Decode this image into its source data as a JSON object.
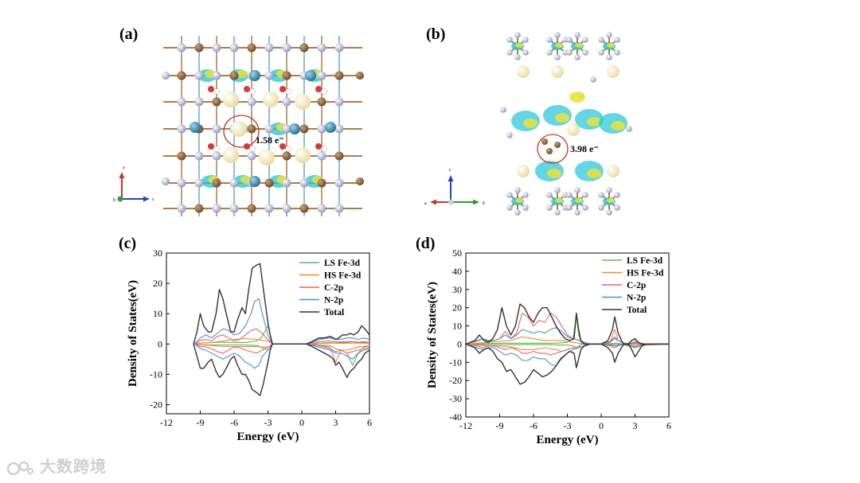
{
  "panels": {
    "a": {
      "label": "(a)",
      "charge_label": "1.58 e⁻",
      "axes": {
        "up": "a",
        "right": "c",
        "center": "b"
      }
    },
    "b": {
      "label": "(b)",
      "charge_label": "3.98 e⁻",
      "axes": {
        "up": "c",
        "left": "a",
        "right": "b"
      }
    },
    "c": {
      "label": "(c)"
    },
    "d": {
      "label": "(d)"
    }
  },
  "watermark": "大数跨境",
  "colors": {
    "LS Fe-3d": "#5cb85c",
    "HS Fe-3d": "#f08a3c",
    "C-2p": "#e8646a",
    "N-2p": "#4a90d9",
    "Total": "#333333"
  },
  "chart_data": [
    {
      "type": "line",
      "panel": "(c)",
      "xlabel": "Energy (eV)",
      "ylabel": "Density of States(eV)",
      "xlim": [
        -12,
        6
      ],
      "ylim": [
        -23,
        30
      ],
      "xticks": [
        -12,
        -9,
        -6,
        -3,
        0,
        3,
        6
      ],
      "yticks": [
        -20,
        -10,
        0,
        10,
        20,
        30
      ],
      "legend_position": "top-right",
      "series": [
        {
          "name": "LS Fe-3d",
          "x": [
            -9.5,
            -9,
            -8,
            -7,
            -6,
            -5,
            -4,
            -3.6,
            -3,
            -2.6,
            0.5,
            1.5,
            2.5,
            3,
            3.5,
            4,
            4.5,
            5,
            5.5,
            6
          ],
          "up": [
            0,
            0.3,
            0.5,
            0.6,
            0.5,
            0.5,
            1,
            2,
            6,
            0,
            0,
            0.2,
            0.3,
            0.3,
            0.5,
            0.5,
            0.8,
            0.4,
            0.5,
            0.4
          ],
          "down": [
            0,
            -0.2,
            -0.3,
            -0.3,
            -0.3,
            -0.3,
            -0.5,
            -1,
            -2,
            0,
            0,
            -0.3,
            -0.5,
            -1.5,
            -2,
            -3,
            -7,
            -3,
            -1,
            -0.5
          ]
        },
        {
          "name": "HS Fe-3d",
          "x": [
            -9.5,
            -9,
            -8,
            -7,
            -6,
            -5,
            -4,
            -3.5,
            -3,
            -2.6,
            0.5,
            1.5,
            2.5,
            3,
            3.5,
            4,
            5,
            6
          ],
          "up": [
            0,
            0.3,
            0.5,
            1,
            1.5,
            1.8,
            1.5,
            1.2,
            1,
            0,
            0,
            0.3,
            0.5,
            0.3,
            0.2,
            0.3,
            0.3,
            0.2
          ],
          "down": [
            0,
            -0.3,
            -0.5,
            -0.8,
            -0.8,
            -0.8,
            -0.8,
            -1,
            -1,
            0,
            0,
            -0.5,
            -1,
            -6,
            -2,
            -2,
            -1,
            -0.5
          ]
        },
        {
          "name": "C-2p",
          "x": [
            -9.5,
            -9,
            -8.5,
            -8,
            -7.5,
            -7,
            -6.5,
            -6,
            -5.5,
            -5,
            -4.5,
            -4,
            -3.5,
            -3,
            -2.6,
            0.5,
            1.5,
            2.5,
            3,
            3.5,
            4,
            4.5,
            5,
            5.5,
            6
          ],
          "up": [
            0,
            1.2,
            1.5,
            1,
            2.5,
            3,
            2,
            1,
            1.5,
            3,
            4.5,
            5,
            3.5,
            1.5,
            0,
            0,
            0.8,
            1,
            0.7,
            0.7,
            0.8,
            0.8,
            0.6,
            0.8,
            0.5
          ],
          "down": [
            0,
            -0.8,
            -1,
            -1.5,
            -2.5,
            -3,
            -2,
            -1,
            -1.2,
            -2,
            -2.5,
            -3,
            -2,
            -1,
            0,
            0,
            -0.5,
            -1.5,
            -2.5,
            -2,
            -3,
            -2.5,
            -2,
            -1.5,
            -1
          ]
        },
        {
          "name": "N-2p",
          "x": [
            -9.5,
            -9,
            -8.5,
            -8,
            -7.5,
            -7,
            -6.5,
            -6,
            -5.5,
            -5,
            -4.5,
            -4.2,
            -3.8,
            -3.5,
            -3,
            -2.6,
            0.5,
            1.5,
            2.5,
            3,
            3.5,
            4,
            4.5,
            5,
            5.5,
            6
          ],
          "up": [
            0,
            2,
            3,
            2,
            3.5,
            5,
            4.5,
            3,
            3.5,
            6,
            10,
            14,
            15,
            10,
            3,
            0,
            0,
            1.5,
            2,
            1.5,
            1.5,
            2,
            2,
            1.5,
            2,
            1.5
          ],
          "down": [
            0,
            -1.5,
            -2,
            -3,
            -4,
            -5,
            -4,
            -3,
            -4,
            -6,
            -7,
            -8,
            -7,
            -4,
            -2,
            0,
            0,
            -1,
            -2,
            -3,
            -3,
            -4,
            -5,
            -3,
            -2,
            -1.5
          ]
        },
        {
          "name": "Total",
          "x": [
            -9.6,
            -9.3,
            -9,
            -8.7,
            -8.3,
            -8,
            -7.6,
            -7.3,
            -7,
            -6.7,
            -6.3,
            -6,
            -5.7,
            -5.3,
            -5,
            -4.7,
            -4.4,
            -4,
            -3.7,
            -3.4,
            -3,
            -2.8,
            -2.6,
            0.4,
            1,
            1.5,
            2,
            2.5,
            2.8,
            3,
            3.3,
            3.6,
            4,
            4.3,
            4.6,
            5,
            5.3,
            5.6,
            6
          ],
          "up": [
            0,
            4,
            10,
            6,
            4,
            4,
            10,
            18,
            15,
            10,
            4,
            4,
            8,
            12,
            10,
            18,
            25,
            26,
            26.5,
            18,
            7,
            3,
            0,
            0,
            1,
            2,
            2,
            2.5,
            2,
            1.5,
            2,
            3,
            3,
            3.5,
            3,
            4,
            6,
            5,
            3
          ],
          "down": [
            0,
            -4,
            -8,
            -8,
            -6,
            -5,
            -9,
            -11,
            -10,
            -8,
            -5,
            -4,
            -7,
            -10,
            -10,
            -12,
            -15,
            -16,
            -17,
            -13,
            -6,
            -2,
            0,
            0,
            -1,
            -2,
            -3,
            -4,
            -5,
            -7,
            -6,
            -8,
            -11,
            -9,
            -8,
            -6,
            -5,
            -3,
            -2
          ]
        }
      ]
    },
    {
      "type": "line",
      "panel": "(d)",
      "xlabel": "Energy (eV)",
      "ylabel": "Density of States(eV)",
      "xlim": [
        -12,
        6
      ],
      "ylim": [
        -40,
        50
      ],
      "xticks": [
        -12,
        -9,
        -6,
        -3,
        0,
        3,
        6
      ],
      "yticks": [
        -40,
        -30,
        -20,
        -10,
        0,
        10,
        20,
        30,
        40,
        50
      ],
      "legend_position": "top-right",
      "series": [
        {
          "name": "LS Fe-3d",
          "x": [
            -12,
            -11,
            -10,
            -9,
            -8,
            -7,
            -6,
            -5,
            -4,
            -3,
            -2.5,
            -2.2,
            -2,
            -1.7,
            -1.4,
            0,
            1,
            1.3,
            1.6,
            2,
            3,
            4,
            6
          ],
          "up": [
            0,
            0.2,
            0.3,
            0.5,
            0.5,
            0.5,
            0.5,
            0.5,
            0.5,
            1,
            3,
            16,
            5,
            0,
            0,
            0,
            0.3,
            0.5,
            0.3,
            0,
            0,
            0,
            0
          ],
          "down": [
            0,
            -0.2,
            -0.2,
            -0.3,
            -0.3,
            -0.3,
            -0.3,
            -0.3,
            -0.5,
            -0.5,
            -1,
            -2,
            -1,
            0,
            0,
            0,
            -0.2,
            -0.3,
            -0.2,
            0,
            0,
            0,
            0
          ]
        },
        {
          "name": "HS Fe-3d",
          "x": [
            -12,
            -11,
            -10,
            -9,
            -8,
            -7,
            -6,
            -5,
            -4,
            -3.5,
            -3,
            -2.5,
            -2,
            -1.5,
            -1,
            0,
            0.8,
            1.2,
            1.5,
            2,
            3,
            4,
            6
          ],
          "up": [
            0,
            0.5,
            1,
            1.5,
            2,
            4,
            3,
            2,
            2,
            2,
            1.5,
            1,
            0.5,
            0.5,
            0,
            0,
            1,
            8,
            2,
            0.5,
            0.5,
            0,
            0
          ],
          "down": [
            0,
            -0.5,
            -1,
            -1,
            -1.5,
            -3,
            -3,
            -2,
            -3,
            -4,
            -3,
            -2,
            -1.5,
            -1,
            0,
            0,
            -0.5,
            -1,
            -0.5,
            -0.5,
            -1.5,
            -0.5,
            0
          ]
        },
        {
          "name": "C-2p",
          "x": [
            -12,
            -11,
            -10.5,
            -10,
            -9.5,
            -9,
            -8.5,
            -8,
            -7.5,
            -7,
            -6.5,
            -6,
            -5.5,
            -5,
            -4.5,
            -4,
            -3.5,
            -3,
            -2.5,
            -2,
            -1.5,
            -1,
            0,
            0.8,
            1.2,
            1.5,
            2,
            2.5,
            3,
            3.5,
            4,
            6
          ],
          "up": [
            0,
            1.5,
            3,
            1.5,
            2,
            3,
            7,
            3,
            6,
            17,
            15,
            10,
            13,
            12,
            17,
            15,
            10,
            5,
            3,
            2,
            1,
            0,
            0,
            1,
            3,
            2,
            0.5,
            0,
            1,
            0.5,
            0,
            0
          ],
          "down": [
            0,
            -1,
            -2,
            -1,
            -1,
            -2,
            -3,
            -2,
            -3,
            -5,
            -5,
            -4,
            -5,
            -5,
            -6,
            -5,
            -4,
            -3,
            -2,
            -2,
            -1,
            0,
            0,
            -0.5,
            -1,
            -0.5,
            0,
            -0.5,
            -1,
            -0.5,
            0,
            0
          ]
        },
        {
          "name": "N-2p",
          "x": [
            -12,
            -11,
            -10.5,
            -10,
            -9.5,
            -9,
            -8.5,
            -8,
            -7.5,
            -7,
            -6.5,
            -6,
            -5.5,
            -5,
            -4.5,
            -4,
            -3.5,
            -3,
            -2.5,
            -2,
            -1.5,
            -1,
            0,
            0.8,
            1.2,
            1.5,
            2,
            2.5,
            3,
            3.5,
            4,
            6
          ],
          "up": [
            0,
            2,
            3,
            2,
            2,
            3,
            5,
            3,
            5,
            8,
            7,
            6,
            7,
            6,
            8,
            9,
            7,
            4,
            3,
            2,
            1,
            0,
            0,
            1.5,
            4,
            2,
            0.5,
            0,
            1.5,
            0.5,
            0,
            0
          ],
          "down": [
            0,
            -2,
            -3,
            -2,
            -2,
            -4,
            -6,
            -5,
            -6,
            -9,
            -9,
            -7,
            -8,
            -8,
            -11,
            -12,
            -8,
            -5,
            -3,
            -2,
            -1,
            0,
            0,
            -1,
            -2,
            -1,
            0,
            -1,
            -2,
            -1,
            0,
            0
          ]
        },
        {
          "name": "Total",
          "x": [
            -12,
            -11.2,
            -10.8,
            -10.4,
            -10,
            -9.6,
            -9.2,
            -8.8,
            -8.4,
            -8,
            -7.6,
            -7.2,
            -6.8,
            -6.4,
            -6,
            -5.6,
            -5.2,
            -4.8,
            -4.4,
            -4,
            -3.6,
            -3.2,
            -2.8,
            -2.4,
            -2.2,
            -2,
            -1.8,
            -1.5,
            -1,
            0,
            0.6,
            1,
            1.2,
            1.5,
            1.8,
            2,
            2.4,
            2.7,
            3,
            3.3,
            3.6,
            4,
            6
          ],
          "up": [
            0,
            2,
            5,
            2,
            1,
            3,
            8,
            20,
            10,
            5,
            10,
            22,
            20,
            15,
            12,
            17,
            20,
            20,
            15,
            10,
            6,
            3,
            2,
            3,
            17,
            8,
            2,
            0,
            0,
            0,
            2,
            8,
            15,
            6,
            2,
            0,
            0,
            2,
            3,
            1,
            0,
            0,
            0
          ],
          "down": [
            0,
            -2,
            -5,
            -3,
            -2,
            -4,
            -8,
            -10,
            -15,
            -14,
            -18,
            -22,
            -21,
            -18,
            -14,
            -16,
            -18,
            -17,
            -15,
            -12,
            -8,
            -6,
            -4,
            -5,
            -13,
            -8,
            -3,
            -1,
            0,
            0,
            -2,
            -5,
            -10,
            -5,
            -2,
            0,
            0,
            -3,
            -7,
            -4,
            -1,
            0,
            0
          ]
        }
      ]
    }
  ]
}
